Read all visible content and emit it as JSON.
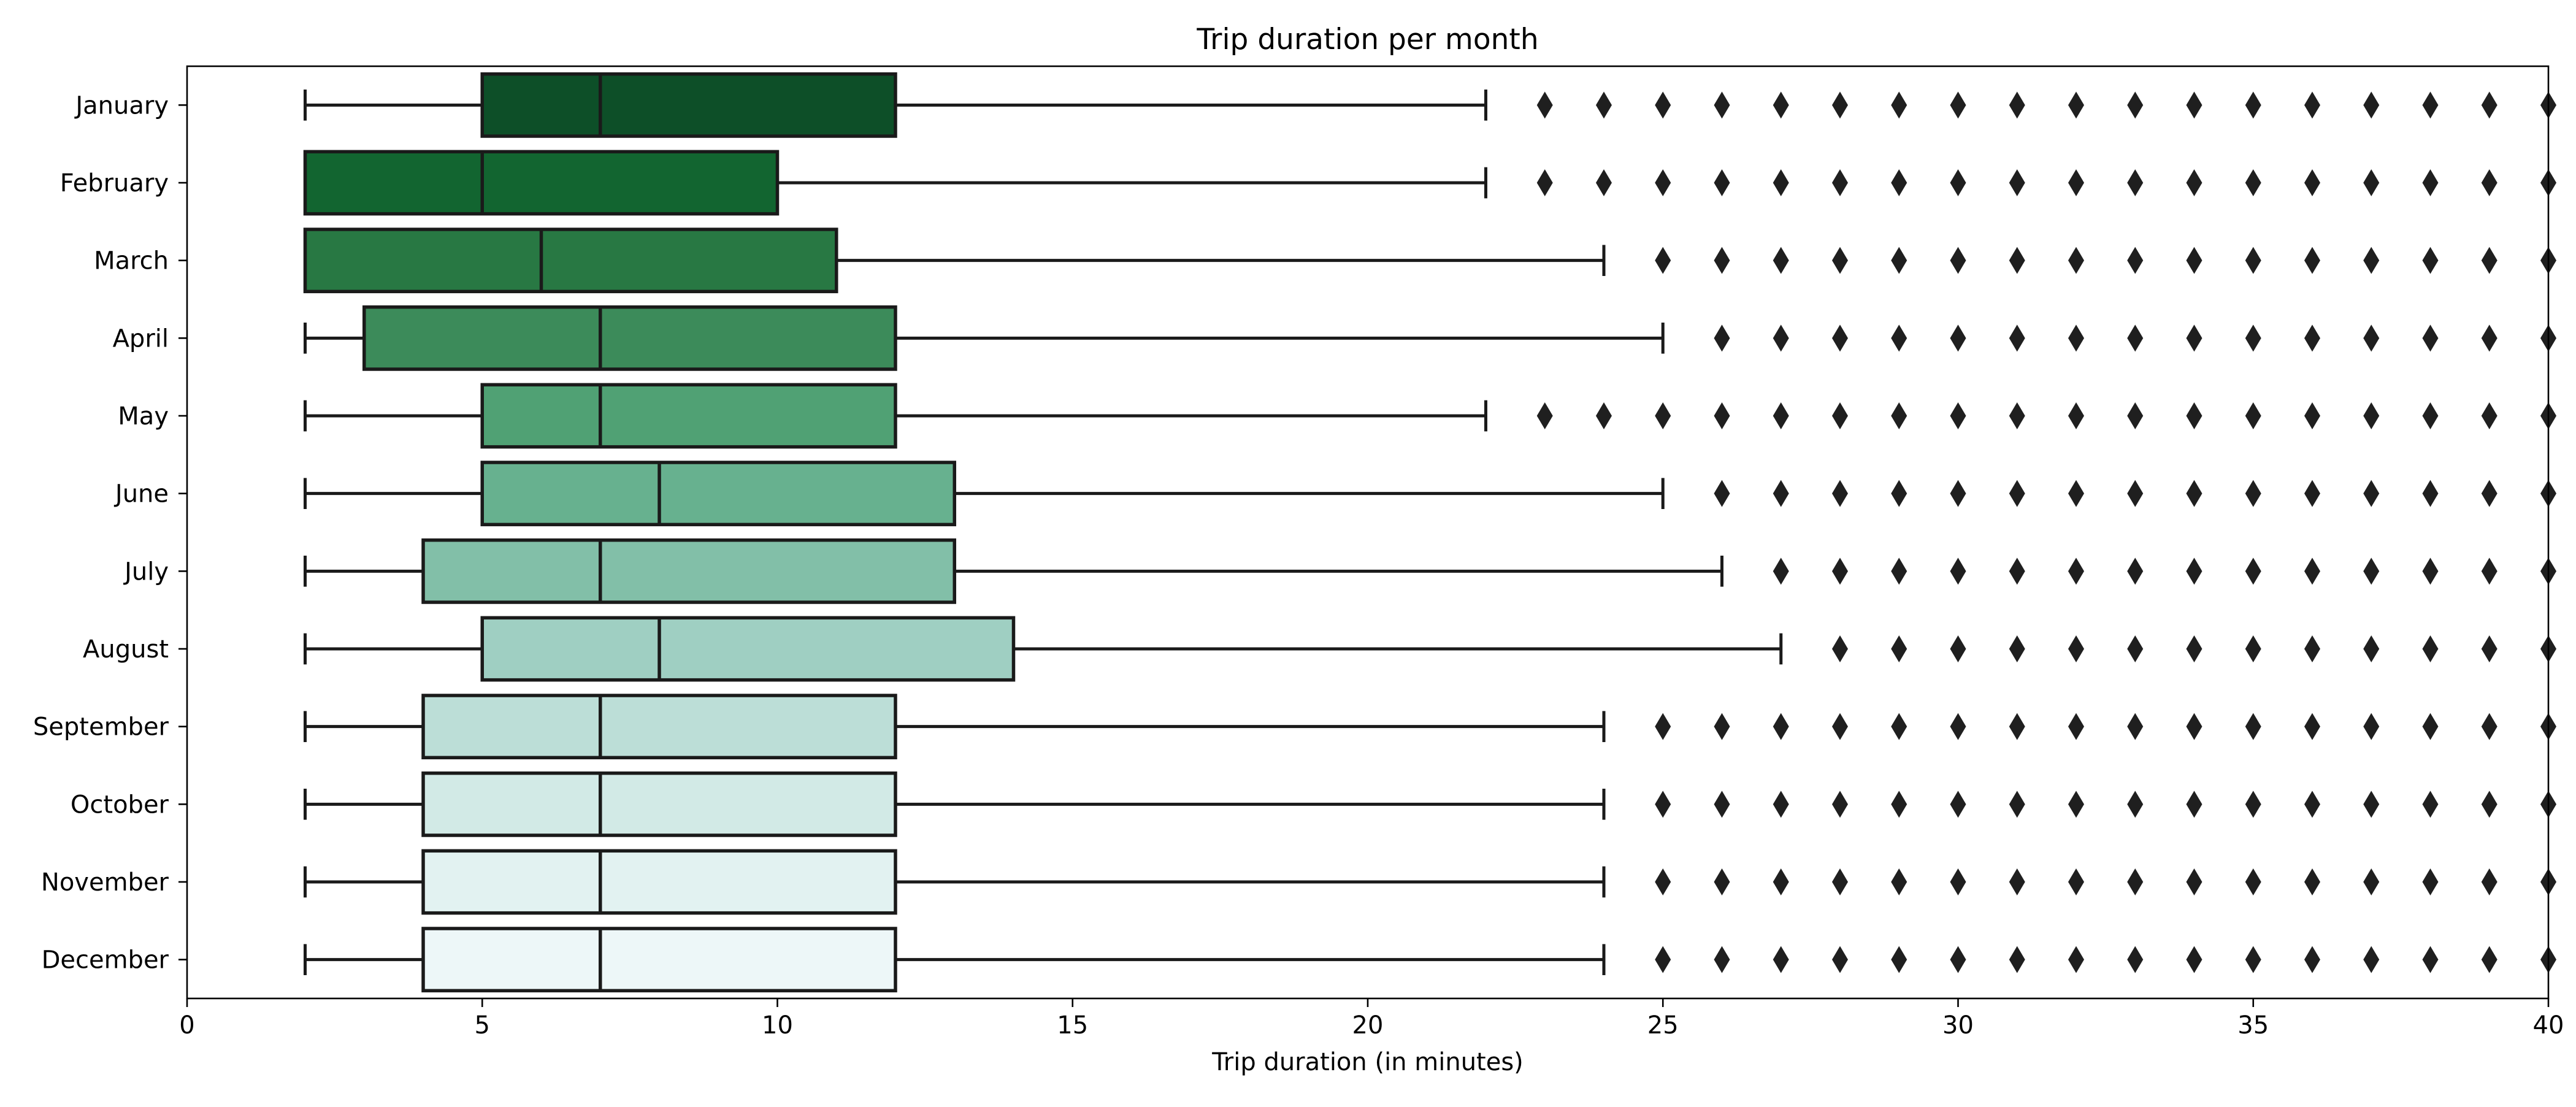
{
  "chart_data": {
    "type": "boxplot",
    "orientation": "horizontal",
    "title": "Trip duration per month",
    "xlabel": "Trip duration (in minutes)",
    "ylabel": "",
    "xlim": [
      0,
      40
    ],
    "xticks": [
      0,
      5,
      10,
      15,
      20,
      25,
      30,
      35,
      40
    ],
    "grid": false,
    "legend": "none",
    "categories": [
      "January",
      "February",
      "March",
      "April",
      "May",
      "June",
      "July",
      "August",
      "September",
      "October",
      "November",
      "December"
    ],
    "series": [
      {
        "label": "January",
        "whisker_low": 2,
        "q1": 5,
        "median": 7,
        "q3": 12,
        "whisker_high": 22,
        "fliers": [
          23,
          24,
          25,
          26,
          27,
          28,
          29,
          30,
          31,
          32,
          33,
          34,
          35,
          36,
          37,
          38,
          39,
          40
        ],
        "color": "#0d4f28"
      },
      {
        "label": "February",
        "whisker_low": 2,
        "q1": 2,
        "median": 5,
        "q3": 10,
        "whisker_high": 22,
        "fliers": [
          23,
          24,
          25,
          26,
          27,
          28,
          29,
          30,
          31,
          32,
          33,
          34,
          35,
          36,
          37,
          38,
          39,
          40
        ],
        "color": "#126530"
      },
      {
        "label": "March",
        "whisker_low": 2,
        "q1": 2,
        "median": 6,
        "q3": 11,
        "whisker_high": 24,
        "fliers": [
          25,
          26,
          27,
          28,
          29,
          30,
          31,
          32,
          33,
          34,
          35,
          36,
          37,
          38,
          39,
          40
        ],
        "color": "#287843"
      },
      {
        "label": "April",
        "whisker_low": 2,
        "q1": 3,
        "median": 7,
        "q3": 12,
        "whisker_high": 25,
        "fliers": [
          26,
          27,
          28,
          29,
          30,
          31,
          32,
          33,
          34,
          35,
          36,
          37,
          38,
          39,
          40
        ],
        "color": "#3c8b5a"
      },
      {
        "label": "May",
        "whisker_low": 2,
        "q1": 5,
        "median": 7,
        "q3": 12,
        "whisker_high": 22,
        "fliers": [
          23,
          24,
          25,
          26,
          27,
          28,
          29,
          30,
          31,
          32,
          33,
          34,
          35,
          36,
          37,
          38,
          39,
          40
        ],
        "color": "#50a174"
      },
      {
        "label": "June",
        "whisker_low": 2,
        "q1": 5,
        "median": 8,
        "q3": 13,
        "whisker_high": 25,
        "fliers": [
          26,
          27,
          28,
          29,
          30,
          31,
          32,
          33,
          34,
          35,
          36,
          37,
          38,
          39,
          40
        ],
        "color": "#67b18f"
      },
      {
        "label": "July",
        "whisker_low": 2,
        "q1": 4,
        "median": 7,
        "q3": 13,
        "whisker_high": 26,
        "fliers": [
          27,
          28,
          29,
          30,
          31,
          32,
          33,
          34,
          35,
          36,
          37,
          38,
          39,
          40
        ],
        "color": "#82bfa8"
      },
      {
        "label": "August",
        "whisker_low": 2,
        "q1": 5,
        "median": 8,
        "q3": 14,
        "whisker_high": 27,
        "fliers": [
          28,
          29,
          30,
          31,
          32,
          33,
          34,
          35,
          36,
          37,
          38,
          39,
          40
        ],
        "color": "#9fcfc2"
      },
      {
        "label": "September",
        "whisker_low": 2,
        "q1": 4,
        "median": 7,
        "q3": 12,
        "whisker_high": 24,
        "fliers": [
          25,
          26,
          27,
          28,
          29,
          30,
          31,
          32,
          33,
          34,
          35,
          36,
          37,
          38,
          39,
          40
        ],
        "color": "#bcded7"
      },
      {
        "label": "October",
        "whisker_low": 2,
        "q1": 4,
        "median": 7,
        "q3": 12,
        "whisker_high": 24,
        "fliers": [
          25,
          26,
          27,
          28,
          29,
          30,
          31,
          32,
          33,
          34,
          35,
          36,
          37,
          38,
          39,
          40
        ],
        "color": "#d2eae6"
      },
      {
        "label": "November",
        "whisker_low": 2,
        "q1": 4,
        "median": 7,
        "q3": 12,
        "whisker_high": 24,
        "fliers": [
          25,
          26,
          27,
          28,
          29,
          30,
          31,
          32,
          33,
          34,
          35,
          36,
          37,
          38,
          39,
          40
        ],
        "color": "#e2f2f1"
      },
      {
        "label": "December",
        "whisker_low": 2,
        "q1": 4,
        "median": 7,
        "q3": 12,
        "whisker_high": 24,
        "fliers": [
          25,
          26,
          27,
          28,
          29,
          30,
          31,
          32,
          33,
          34,
          35,
          36,
          37,
          38,
          39,
          40
        ],
        "color": "#edf7f8"
      }
    ]
  }
}
